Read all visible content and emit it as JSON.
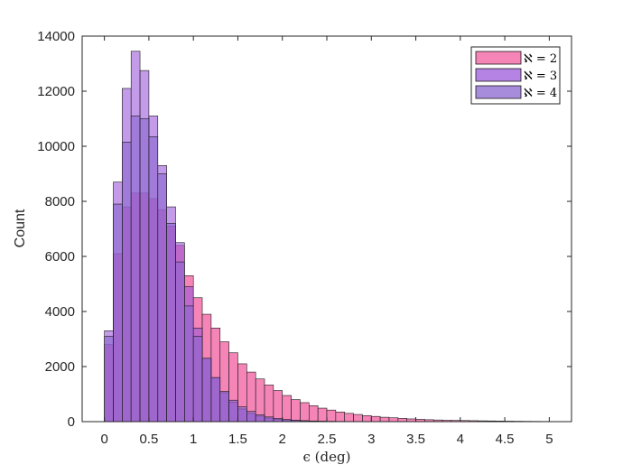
{
  "chart_data": {
    "type": "bar",
    "title": "",
    "xlabel": "ϵ (deg)",
    "ylabel": "Count",
    "xlim": [
      -0.25,
      5.25
    ],
    "ylim": [
      0,
      14000
    ],
    "xticks": [
      "0",
      "0.5",
      "1",
      "1.5",
      "2",
      "2.5",
      "3",
      "3.5",
      "4",
      "4.5",
      "5"
    ],
    "yticks": [
      "0",
      "2000",
      "4000",
      "6000",
      "8000",
      "10000",
      "12000",
      "14000"
    ],
    "bin_width": 0.1,
    "bin_edges_start": 0,
    "legend_position": "top-right",
    "grid": false,
    "series": [
      {
        "name": "ℵ = 2",
        "color": "#f47eb3",
        "values": [
          2800,
          6100,
          7800,
          8300,
          8300,
          8100,
          7700,
          7100,
          6400,
          5300,
          4500,
          3900,
          3400,
          2900,
          2500,
          2100,
          1800,
          1550,
          1330,
          1130,
          950,
          800,
          690,
          580,
          490,
          420,
          350,
          300,
          260,
          220,
          190,
          160,
          140,
          120,
          100,
          85,
          70,
          60,
          50,
          45,
          40,
          35,
          30,
          26,
          22,
          18,
          15,
          12,
          10,
          8
        ]
      },
      {
        "name": "ℵ = 3",
        "color": "#9b59d9",
        "values": [
          3300,
          8700,
          12100,
          13450,
          12750,
          11100,
          9300,
          7800,
          6500,
          4900,
          3400,
          2300,
          1600,
          1050,
          700,
          460,
          300,
          200,
          130,
          90,
          60,
          40,
          28,
          20,
          14,
          10,
          7,
          5,
          4,
          3,
          2,
          2,
          1,
          1,
          1,
          1,
          0,
          0,
          0,
          0,
          0,
          0,
          0,
          0,
          0,
          0,
          0,
          0,
          0,
          0
        ]
      },
      {
        "name": "ℵ = 4",
        "color": "#8a66cf",
        "values": [
          3100,
          7900,
          10150,
          11100,
          11000,
          10350,
          9000,
          7200,
          5800,
          4200,
          3100,
          2300,
          1600,
          1100,
          780,
          540,
          370,
          250,
          170,
          115,
          78,
          52,
          35,
          24,
          16,
          11,
          8,
          5,
          4,
          3,
          2,
          1,
          1,
          1,
          0,
          0,
          0,
          0,
          0,
          0,
          0,
          0,
          0,
          0,
          0,
          0,
          0,
          0,
          0,
          0
        ]
      }
    ],
    "overlap_color": "#5e10a8"
  }
}
